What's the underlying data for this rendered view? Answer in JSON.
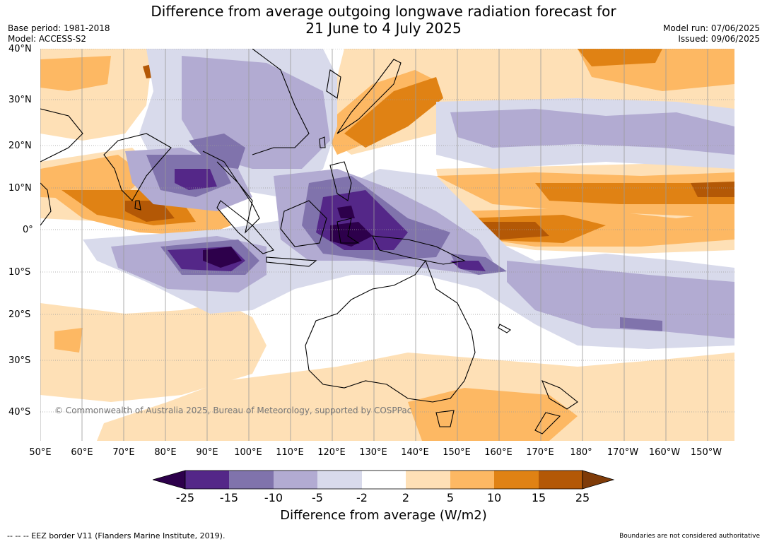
{
  "title": {
    "line1": "Difference from average outgoing longwave radiation forecast for",
    "line2": "21 June to 4 July 2025"
  },
  "meta_left": {
    "base_period": "Base period: 1981-2018",
    "model": "Model: ACCESS-S2"
  },
  "meta_right": {
    "model_run": "Model run: 07/06/2025",
    "issued": "Issued: 09/06/2025"
  },
  "latitude_labels": [
    "40°N",
    "30°N",
    "20°N",
    "10°N",
    "0°",
    "10°S",
    "20°S",
    "30°S",
    "40°S"
  ],
  "longitude_labels": [
    "50°E",
    "60°E",
    "70°E",
    "80°E",
    "90°E",
    "100°E",
    "110°E",
    "120°E",
    "130°E",
    "140°E",
    "150°E",
    "160°E",
    "170°E",
    "180°",
    "170°W",
    "160°W",
    "150°W"
  ],
  "copyright": "© Commonwealth of Australia 2025, Bureau of Meteorology, supported by COSPPac",
  "colorbar": {
    "title": "Difference from average (W/m2)",
    "ticks": [
      "-25",
      "-15",
      "-10",
      "-5",
      "-2",
      "2",
      "5",
      "10",
      "15",
      "25"
    ],
    "colors": [
      "#2d004b",
      "#542788",
      "#8073ac",
      "#b2abd2",
      "#d8daeb",
      "#ffffff",
      "#fee0b6",
      "#fdb863",
      "#e08214",
      "#b35806",
      "#7f3b08"
    ]
  },
  "footer": {
    "eez_note": "--  --  -- EEZ border V11 (Flanders Marine Institute, 2019).",
    "boundaries_note": "Boundaries are not considered authoritative"
  }
}
